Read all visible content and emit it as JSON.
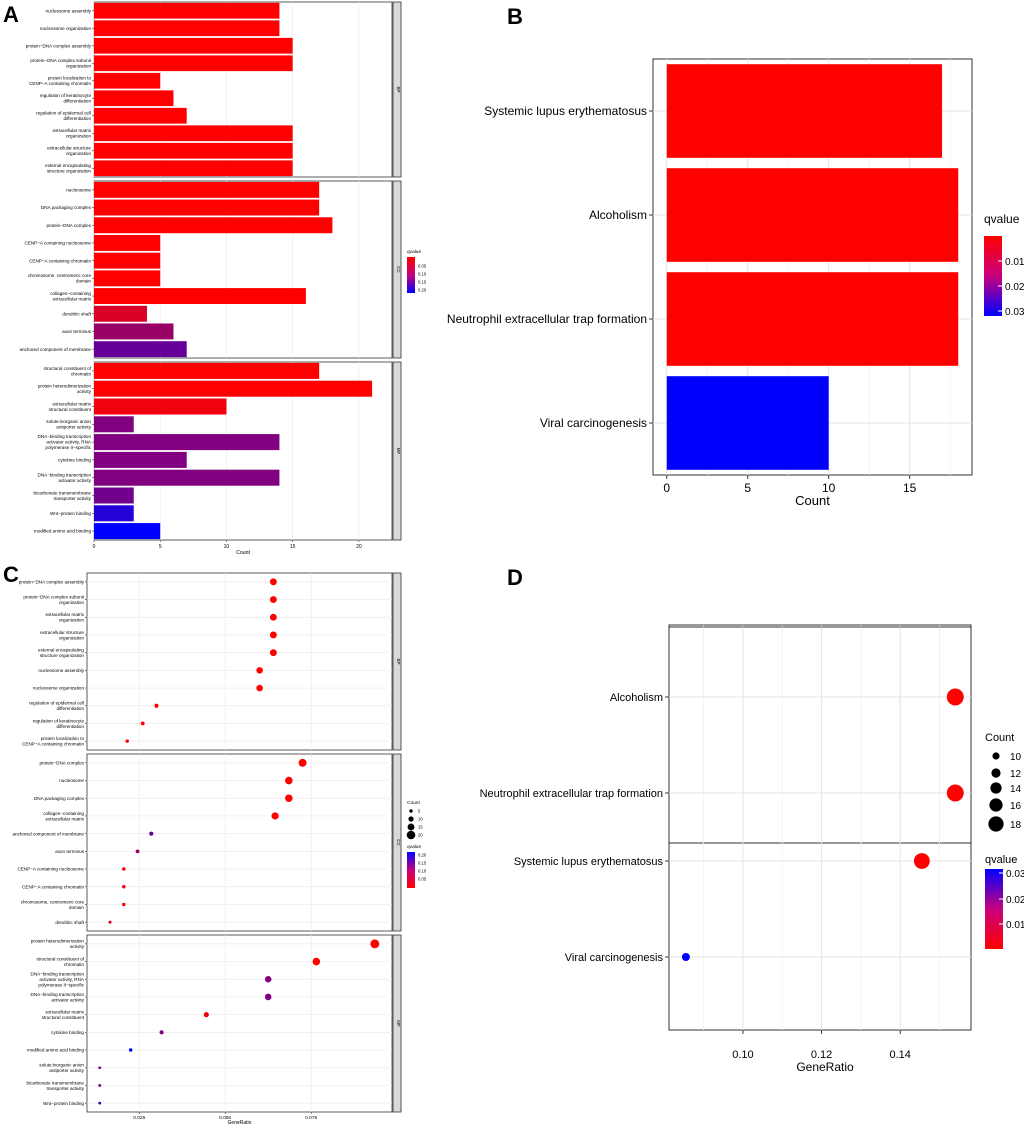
{
  "panel_labels": [
    "A",
    "B",
    "C",
    "D"
  ],
  "chart_data": [
    {
      "panel": "A",
      "type": "bar",
      "orientation": "horizontal",
      "xlabel": "Count",
      "xlim": [
        0,
        22.5
      ],
      "xticks": [
        0,
        5,
        10,
        15,
        20
      ],
      "legend": {
        "title": "qvalue",
        "ticks": [
          "0.05",
          "0.10",
          "0.15",
          "0.20"
        ],
        "range": [
          0,
          0.2
        ],
        "low_color": "#ff0000",
        "high_color": "#0000ff"
      },
      "facets": [
        {
          "name": "BP",
          "categories": [
            {
              "label": [
                "nucleosome assembly"
              ],
              "value": 14,
              "q": 0.0
            },
            {
              "label": [
                "nucleosome organization"
              ],
              "value": 14,
              "q": 0.0
            },
            {
              "label": [
                "protein−DNA complex assembly"
              ],
              "value": 15,
              "q": 0.0
            },
            {
              "label": [
                "protein−DNA complex subunit",
                "organization"
              ],
              "value": 15,
              "q": 0.0
            },
            {
              "label": [
                "protein localization to",
                "CENP−A containing chromatin"
              ],
              "value": 5,
              "q": 0.0
            },
            {
              "label": [
                "regulation of keratinocyte",
                "differentiation"
              ],
              "value": 6,
              "q": 0.0
            },
            {
              "label": [
                "regulation of epidermal cell",
                "differentiation"
              ],
              "value": 7,
              "q": 0.0
            },
            {
              "label": [
                "extracellular matrix",
                "organization"
              ],
              "value": 15,
              "q": 0.0
            },
            {
              "label": [
                "extracellular structure",
                "organization"
              ],
              "value": 15,
              "q": 0.0
            },
            {
              "label": [
                "external encapsulating",
                "structure organization"
              ],
              "value": 15,
              "q": 0.0
            }
          ]
        },
        {
          "name": "CC",
          "categories": [
            {
              "label": [
                "nucleosome"
              ],
              "value": 17,
              "q": 0.0
            },
            {
              "label": [
                "DNA packaging complex"
              ],
              "value": 17,
              "q": 0.0
            },
            {
              "label": [
                "protein−DNA complex"
              ],
              "value": 18,
              "q": 0.0
            },
            {
              "label": [
                "CENP−A containing nucleosome"
              ],
              "value": 5,
              "q": 0.0
            },
            {
              "label": [
                "CENP−A containing chromatin"
              ],
              "value": 5,
              "q": 0.0
            },
            {
              "label": [
                "chromosome, centromeric core",
                "domain"
              ],
              "value": 5,
              "q": 0.0
            },
            {
              "label": [
                "collagen−containing",
                "extracellular matrix"
              ],
              "value": 16,
              "q": 0.0
            },
            {
              "label": [
                "dendritic shaft"
              ],
              "value": 4,
              "q": 0.03
            },
            {
              "label": [
                "axon terminus"
              ],
              "value": 6,
              "q": 0.08
            },
            {
              "label": [
                "anchored component of membrane"
              ],
              "value": 7,
              "q": 0.12
            }
          ]
        },
        {
          "name": "MF",
          "categories": [
            {
              "label": [
                "structural constituent of",
                "chromatin"
              ],
              "value": 17,
              "q": 0.0
            },
            {
              "label": [
                "protein heterodimerization",
                "activity"
              ],
              "value": 21,
              "q": 0.0
            },
            {
              "label": [
                "extracellular matrix",
                "structural constituent"
              ],
              "value": 10,
              "q": 0.01
            },
            {
              "label": [
                "solute:inorganic anion",
                "antiporter activity"
              ],
              "value": 3,
              "q": 0.1
            },
            {
              "label": [
                "DNA−binding transcription",
                "activator activity, RNA",
                "polymerase II−specific"
              ],
              "value": 14,
              "q": 0.1
            },
            {
              "label": [
                "cytokine binding"
              ],
              "value": 7,
              "q": 0.1
            },
            {
              "label": [
                "DNA−binding transcription",
                "activator activity"
              ],
              "value": 14,
              "q": 0.1
            },
            {
              "label": [
                "bicarbonate transmembrane",
                "transporter activity"
              ],
              "value": 3,
              "q": 0.11
            },
            {
              "label": [
                "Wnt−protein binding"
              ],
              "value": 3,
              "q": 0.17
            },
            {
              "label": [
                "modified amino acid binding"
              ],
              "value": 5,
              "q": 0.2
            }
          ]
        }
      ]
    },
    {
      "panel": "B",
      "type": "bar",
      "orientation": "horizontal",
      "xlabel": "Count",
      "xlim": [
        -0.85,
        18.85
      ],
      "xticks": [
        0,
        5,
        10,
        15
      ],
      "legend": {
        "title": "qvalue",
        "ticks": [
          "0.01",
          "0.02",
          "0.03"
        ],
        "range": [
          0,
          0.032
        ],
        "low_color": "#ff0000",
        "high_color": "#0000ff"
      },
      "categories": [
        {
          "label": "Systemic lupus erythematosus",
          "value": 17,
          "q": 0.0
        },
        {
          "label": "Alcoholism",
          "value": 18,
          "q": 0.0
        },
        {
          "label": "Neutrophil extracellular trap formation",
          "value": 18,
          "q": 0.0
        },
        {
          "label": "Viral carcinogenesis",
          "value": 10,
          "q": 0.032
        }
      ]
    },
    {
      "panel": "C",
      "type": "scatter",
      "xlabel": "GeneRatio",
      "xlim": [
        0.0098,
        0.0985
      ],
      "xticks": [
        0.025,
        0.05,
        0.075
      ],
      "xtick_labels": [
        "0.025",
        "0.050",
        "0.075"
      ],
      "size_legend": {
        "title": "Count",
        "values": [
          5,
          10,
          15,
          20
        ]
      },
      "legend": {
        "title": "qvalue",
        "ticks": [
          "0.20",
          "0.15",
          "0.10",
          "0.05"
        ],
        "range": [
          0,
          0.2
        ],
        "low_color": "#ff0000",
        "high_color": "#0000ff"
      },
      "facets": [
        {
          "name": "BP",
          "points": [
            {
              "label": [
                "protein−DNA complex assembly"
              ],
              "x": 0.064,
              "count": 15,
              "q": 0.0
            },
            {
              "label": [
                "protein−DNA complex subunit",
                "organization"
              ],
              "x": 0.064,
              "count": 15,
              "q": 0.0
            },
            {
              "label": [
                "extracellular matrix",
                "organization"
              ],
              "x": 0.064,
              "count": 15,
              "q": 0.0
            },
            {
              "label": [
                "extracellular structure",
                "organization"
              ],
              "x": 0.064,
              "count": 15,
              "q": 0.0
            },
            {
              "label": [
                "external encapsulating",
                "structure organization"
              ],
              "x": 0.064,
              "count": 15,
              "q": 0.0
            },
            {
              "label": [
                "nucleosome assembly"
              ],
              "x": 0.06,
              "count": 14,
              "q": 0.0
            },
            {
              "label": [
                "nucleosome organization"
              ],
              "x": 0.06,
              "count": 14,
              "q": 0.0
            },
            {
              "label": [
                "regulation of epidermal cell",
                "differentiation"
              ],
              "x": 0.03,
              "count": 7,
              "q": 0.0
            },
            {
              "label": [
                "regulation of keratinocyte",
                "differentiation"
              ],
              "x": 0.026,
              "count": 6,
              "q": 0.0
            },
            {
              "label": [
                "protein localization to",
                "CENP−A containing chromatin"
              ],
              "x": 0.0215,
              "count": 5,
              "q": 0.0
            }
          ]
        },
        {
          "name": "CC",
          "points": [
            {
              "label": [
                "protein−DNA complex"
              ],
              "x": 0.0725,
              "count": 18,
              "q": 0.0
            },
            {
              "label": [
                "nucleosome"
              ],
              "x": 0.0685,
              "count": 17,
              "q": 0.0
            },
            {
              "label": [
                "DNA packaging complex"
              ],
              "x": 0.0685,
              "count": 17,
              "q": 0.0
            },
            {
              "label": [
                "collagen−containing",
                "extracellular matrix"
              ],
              "x": 0.0645,
              "count": 16,
              "q": 0.0
            },
            {
              "label": [
                "anchored component of membrane"
              ],
              "x": 0.0285,
              "count": 7,
              "q": 0.12
            },
            {
              "label": [
                "axon terminus"
              ],
              "x": 0.0245,
              "count": 6,
              "q": 0.08
            },
            {
              "label": [
                "CENP−A containing nucleosome"
              ],
              "x": 0.0205,
              "count": 5,
              "q": 0.0
            },
            {
              "label": [
                "CENP−A containing chromatin"
              ],
              "x": 0.0205,
              "count": 5,
              "q": 0.0
            },
            {
              "label": [
                "chromosome, centromeric core",
                "domain"
              ],
              "x": 0.0205,
              "count": 5,
              "q": 0.0
            },
            {
              "label": [
                "dendritic shaft"
              ],
              "x": 0.0165,
              "count": 4,
              "q": 0.03
            }
          ]
        },
        {
          "name": "MF",
          "points": [
            {
              "label": [
                "protein heterodimerization",
                "activity"
              ],
              "x": 0.0935,
              "count": 21,
              "q": 0.0
            },
            {
              "label": [
                "structural constituent of",
                "chromatin"
              ],
              "x": 0.0765,
              "count": 17,
              "q": 0.0
            },
            {
              "label": [
                "DNA−binding transcription",
                "activator activity, RNA",
                "polymerase II−specific"
              ],
              "x": 0.0625,
              "count": 14,
              "q": 0.1
            },
            {
              "label": [
                "DNA−binding transcription",
                "activator activity"
              ],
              "x": 0.0625,
              "count": 14,
              "q": 0.1
            },
            {
              "label": [
                "extracellular matrix",
                "structural constituent"
              ],
              "x": 0.0445,
              "count": 10,
              "q": 0.01
            },
            {
              "label": [
                "cytokine binding"
              ],
              "x": 0.0315,
              "count": 7,
              "q": 0.1
            },
            {
              "label": [
                "modified amino acid binding"
              ],
              "x": 0.0225,
              "count": 5,
              "q": 0.2
            },
            {
              "label": [
                "solute:inorganic anion",
                "antiporter activity"
              ],
              "x": 0.0135,
              "count": 3,
              "q": 0.1
            },
            {
              "label": [
                "bicarbonate transmembrane",
                "transporter activity"
              ],
              "x": 0.0135,
              "count": 3,
              "q": 0.11
            },
            {
              "label": [
                "Wnt−protein binding"
              ],
              "x": 0.0135,
              "count": 3,
              "q": 0.17
            }
          ]
        }
      ]
    },
    {
      "panel": "D",
      "type": "scatter",
      "xlabel": "GeneRatio",
      "xlim": [
        0.0812,
        0.158
      ],
      "xticks": [
        0.1,
        0.12,
        0.14
      ],
      "xtick_labels": [
        "0.10",
        "0.12",
        "0.14"
      ],
      "size_legend": {
        "title": "Count",
        "values": [
          10,
          12,
          14,
          16,
          18
        ]
      },
      "legend": {
        "title": "qvalue",
        "ticks": [
          "0.03",
          "0.02",
          "0.01"
        ],
        "range": [
          0,
          0.032
        ],
        "low_color": "#ff0000",
        "high_color": "#0000ff"
      },
      "points": [
        {
          "label": "Alcoholism",
          "x": 0.154,
          "count": 18,
          "q": 0.0
        },
        {
          "label": "Neutrophil extracellular trap formation",
          "x": 0.154,
          "count": 18,
          "q": 0.0
        },
        {
          "label": "Systemic lupus erythematosus",
          "x": 0.1455,
          "count": 17,
          "q": 0.0
        },
        {
          "label": "Viral carcinogenesis",
          "x": 0.0855,
          "count": 10,
          "q": 0.032
        }
      ]
    }
  ]
}
